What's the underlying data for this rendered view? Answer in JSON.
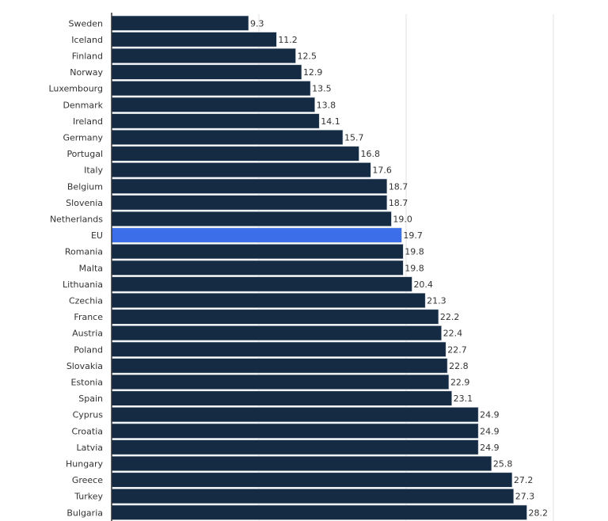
{
  "chart_data": {
    "type": "bar",
    "orientation": "horizontal",
    "title": "",
    "xlabel": "",
    "ylabel": "",
    "xlim": [
      0,
      30
    ],
    "gridlines": [
      10,
      20,
      30
    ],
    "grid": true,
    "colors": {
      "default": "#152b44",
      "highlight": "#3b6ee8",
      "grid": "#e0e0e0",
      "axis": "#333333"
    },
    "highlight": "EU",
    "categories": [
      "Sweden",
      "Iceland",
      "Finland",
      "Norway",
      "Luxembourg",
      "Denmark",
      "Ireland",
      "Germany",
      "Portugal",
      "Italy",
      "Belgium",
      "Slovenia",
      "Netherlands",
      "EU",
      "Romania",
      "Malta",
      "Lithuania",
      "Czechia",
      "France",
      "Austria",
      "Poland",
      "Slovakia",
      "Estonia",
      "Spain",
      "Cyprus",
      "Croatia",
      "Latvia",
      "Hungary",
      "Greece",
      "Turkey",
      "Bulgaria"
    ],
    "values": [
      9.3,
      11.2,
      12.5,
      12.9,
      13.5,
      13.8,
      14.1,
      15.7,
      16.8,
      17.6,
      18.7,
      18.7,
      19.0,
      19.7,
      19.8,
      19.8,
      20.4,
      21.3,
      22.2,
      22.4,
      22.7,
      22.8,
      22.9,
      23.1,
      24.9,
      24.9,
      24.9,
      25.8,
      27.2,
      27.3,
      28.2
    ],
    "labels": [
      "9.3",
      "11.2",
      "12.5",
      "12.9",
      "13.5",
      "13.8",
      "14.1",
      "15.7",
      "16.8",
      "17.6",
      "18.7",
      "18.7",
      "19.0",
      "19.7",
      "19.8",
      "19.8",
      "20.4",
      "21.3",
      "22.2",
      "22.4",
      "22.7",
      "22.8",
      "22.9",
      "23.1",
      "24.9",
      "24.9",
      "24.9",
      "25.8",
      "27.2",
      "27.3",
      "28.2"
    ]
  }
}
